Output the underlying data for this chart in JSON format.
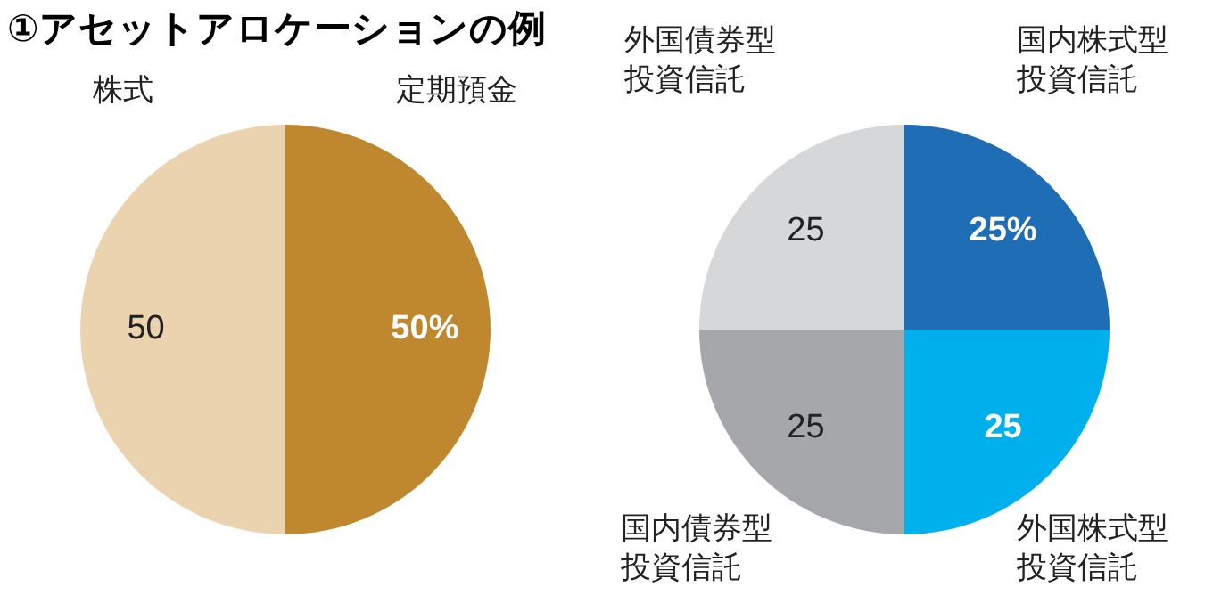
{
  "chart_data": [
    {
      "type": "pie",
      "title": "①アセットアロケーションの例",
      "categories": [
        "定期預金",
        "株式"
      ],
      "values": [
        50,
        50
      ],
      "colors": [
        "#c0882e",
        "#ecd3b0"
      ],
      "value_labels": [
        "50%",
        "50"
      ],
      "legend": false
    },
    {
      "type": "pie",
      "categories": [
        "国内株式型投資信託",
        "外国株式型投資信託",
        "国内債券型投資信託",
        "外国債券型投資信託"
      ],
      "values": [
        25,
        25,
        25,
        25
      ],
      "colors": [
        "#1e6db5",
        "#00b0ec",
        "#a6a7aa",
        "#d6d7d9"
      ],
      "value_labels": [
        "25%",
        "25",
        "25",
        "25"
      ],
      "legend": false
    }
  ]
}
